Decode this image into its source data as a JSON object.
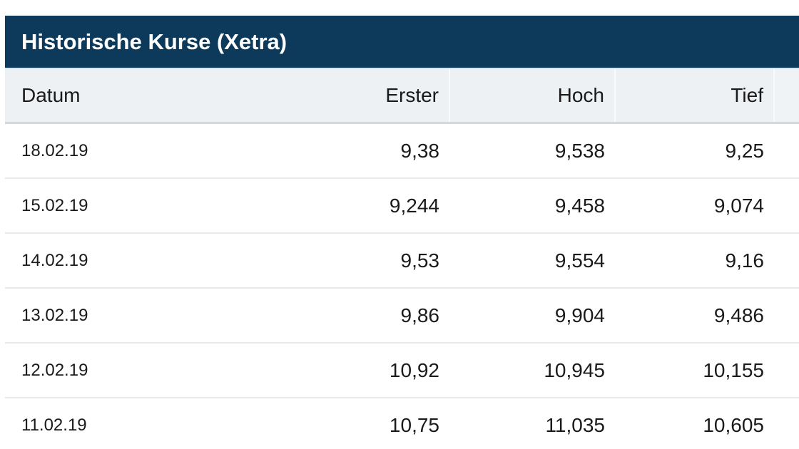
{
  "title_bar": {
    "title": "Historische Kurse (Xetra)"
  },
  "table": {
    "columns": [
      {
        "key": "datum",
        "label": "Datum"
      },
      {
        "key": "erster",
        "label": "Erster"
      },
      {
        "key": "hoch",
        "label": "Hoch"
      },
      {
        "key": "tief",
        "label": "Tief"
      }
    ],
    "rows": [
      {
        "datum": "18.02.19",
        "erster": "9,38",
        "hoch": "9,538",
        "tief": "9,25"
      },
      {
        "datum": "15.02.19",
        "erster": "9,244",
        "hoch": "9,458",
        "tief": "9,074"
      },
      {
        "datum": "14.02.19",
        "erster": "9,53",
        "hoch": "9,554",
        "tief": "9,16"
      },
      {
        "datum": "13.02.19",
        "erster": "9,86",
        "hoch": "9,904",
        "tief": "9,486"
      },
      {
        "datum": "12.02.19",
        "erster": "10,92",
        "hoch": "10,945",
        "tief": "10,155"
      },
      {
        "datum": "11.02.19",
        "erster": "10,75",
        "hoch": "11,035",
        "tief": "10,605"
      }
    ]
  },
  "colors": {
    "accent_navy": "#0d3a5b",
    "header_row_bg": "#edf1f4",
    "header_bottom_border": "#d2d9de",
    "row_separator": "#e9e9e9",
    "text": "#1a1a1a",
    "title_text": "#ffffff"
  }
}
